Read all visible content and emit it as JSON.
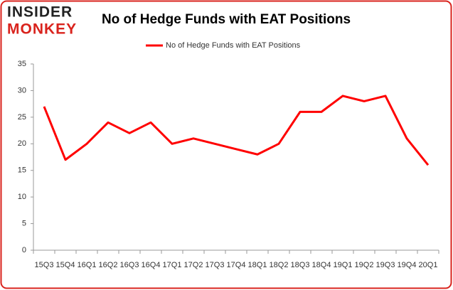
{
  "logo": {
    "line1": "INSIDER",
    "line2": "MONKEY"
  },
  "chart_data": {
    "type": "line",
    "title": "No of Hedge Funds with EAT Positions",
    "categories": [
      "15Q3",
      "15Q4",
      "16Q1",
      "16Q2",
      "16Q3",
      "16Q4",
      "17Q1",
      "17Q2",
      "17Q3",
      "17Q4",
      "18Q1",
      "18Q2",
      "18Q3",
      "18Q4",
      "19Q1",
      "19Q2",
      "19Q3",
      "19Q4",
      "20Q1"
    ],
    "series": [
      {
        "name": "No of Hedge Funds with EAT Positions",
        "color": "#ff0000",
        "values": [
          27,
          17,
          20,
          24,
          22,
          24,
          20,
          21,
          20,
          19,
          18,
          20,
          26,
          26,
          29,
          28,
          29,
          21,
          16
        ]
      }
    ],
    "ylim": [
      0,
      35
    ],
    "yticks": [
      0,
      5,
      10,
      15,
      20,
      25,
      30,
      35
    ],
    "grid": false,
    "legend": "top"
  }
}
